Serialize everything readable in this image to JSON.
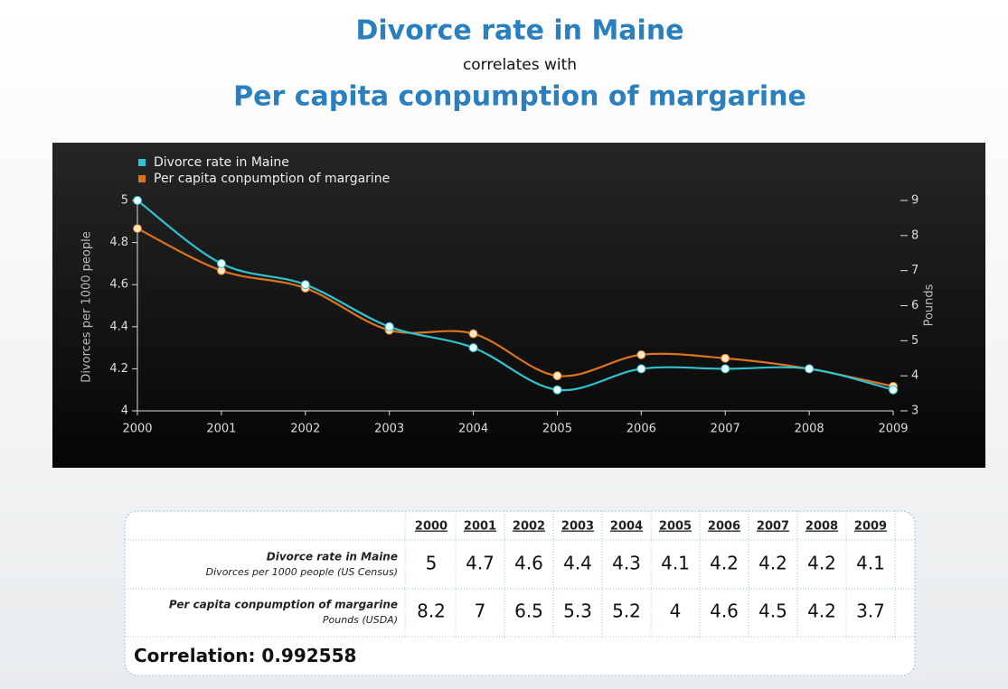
{
  "chart_data": {
    "type": "line",
    "title": "Divorce rate in Maine",
    "subtitle": "correlates with",
    "title_line2": "Per capita conpumption of margarine",
    "categories": [
      "2000",
      "2001",
      "2002",
      "2003",
      "2004",
      "2005",
      "2006",
      "2007",
      "2008",
      "2009"
    ],
    "series": [
      {
        "name": "Divorce rate in Maine",
        "color": "#2fc3cf",
        "values": [
          5,
          4.7,
          4.6,
          4.4,
          4.3,
          4.1,
          4.2,
          4.2,
          4.2,
          4.1
        ]
      },
      {
        "name": "Per capita conpumption of margarine",
        "color": "#d9741f",
        "axis": "y2",
        "values": [
          8.2,
          7,
          6.5,
          5.3,
          5.2,
          4,
          4.6,
          4.5,
          4.2,
          3.7
        ]
      }
    ],
    "ylabel": "Divorces per 1000 people",
    "y2label": "Pounds",
    "ylim": [
      4,
      5
    ],
    "yticks": [
      4,
      4.2,
      4.4,
      4.6,
      4.8,
      5
    ],
    "y2lim": [
      3,
      9
    ],
    "y2ticks": [
      3,
      4,
      5,
      6,
      7,
      8,
      9
    ],
    "legend": "top-left"
  },
  "table": {
    "row_sublabels": [
      "Divorces per 1000 people (US Census)",
      "Pounds (USDA)"
    ],
    "correlation": {
      "label": "Correlation:",
      "value": 0.992558
    }
  }
}
